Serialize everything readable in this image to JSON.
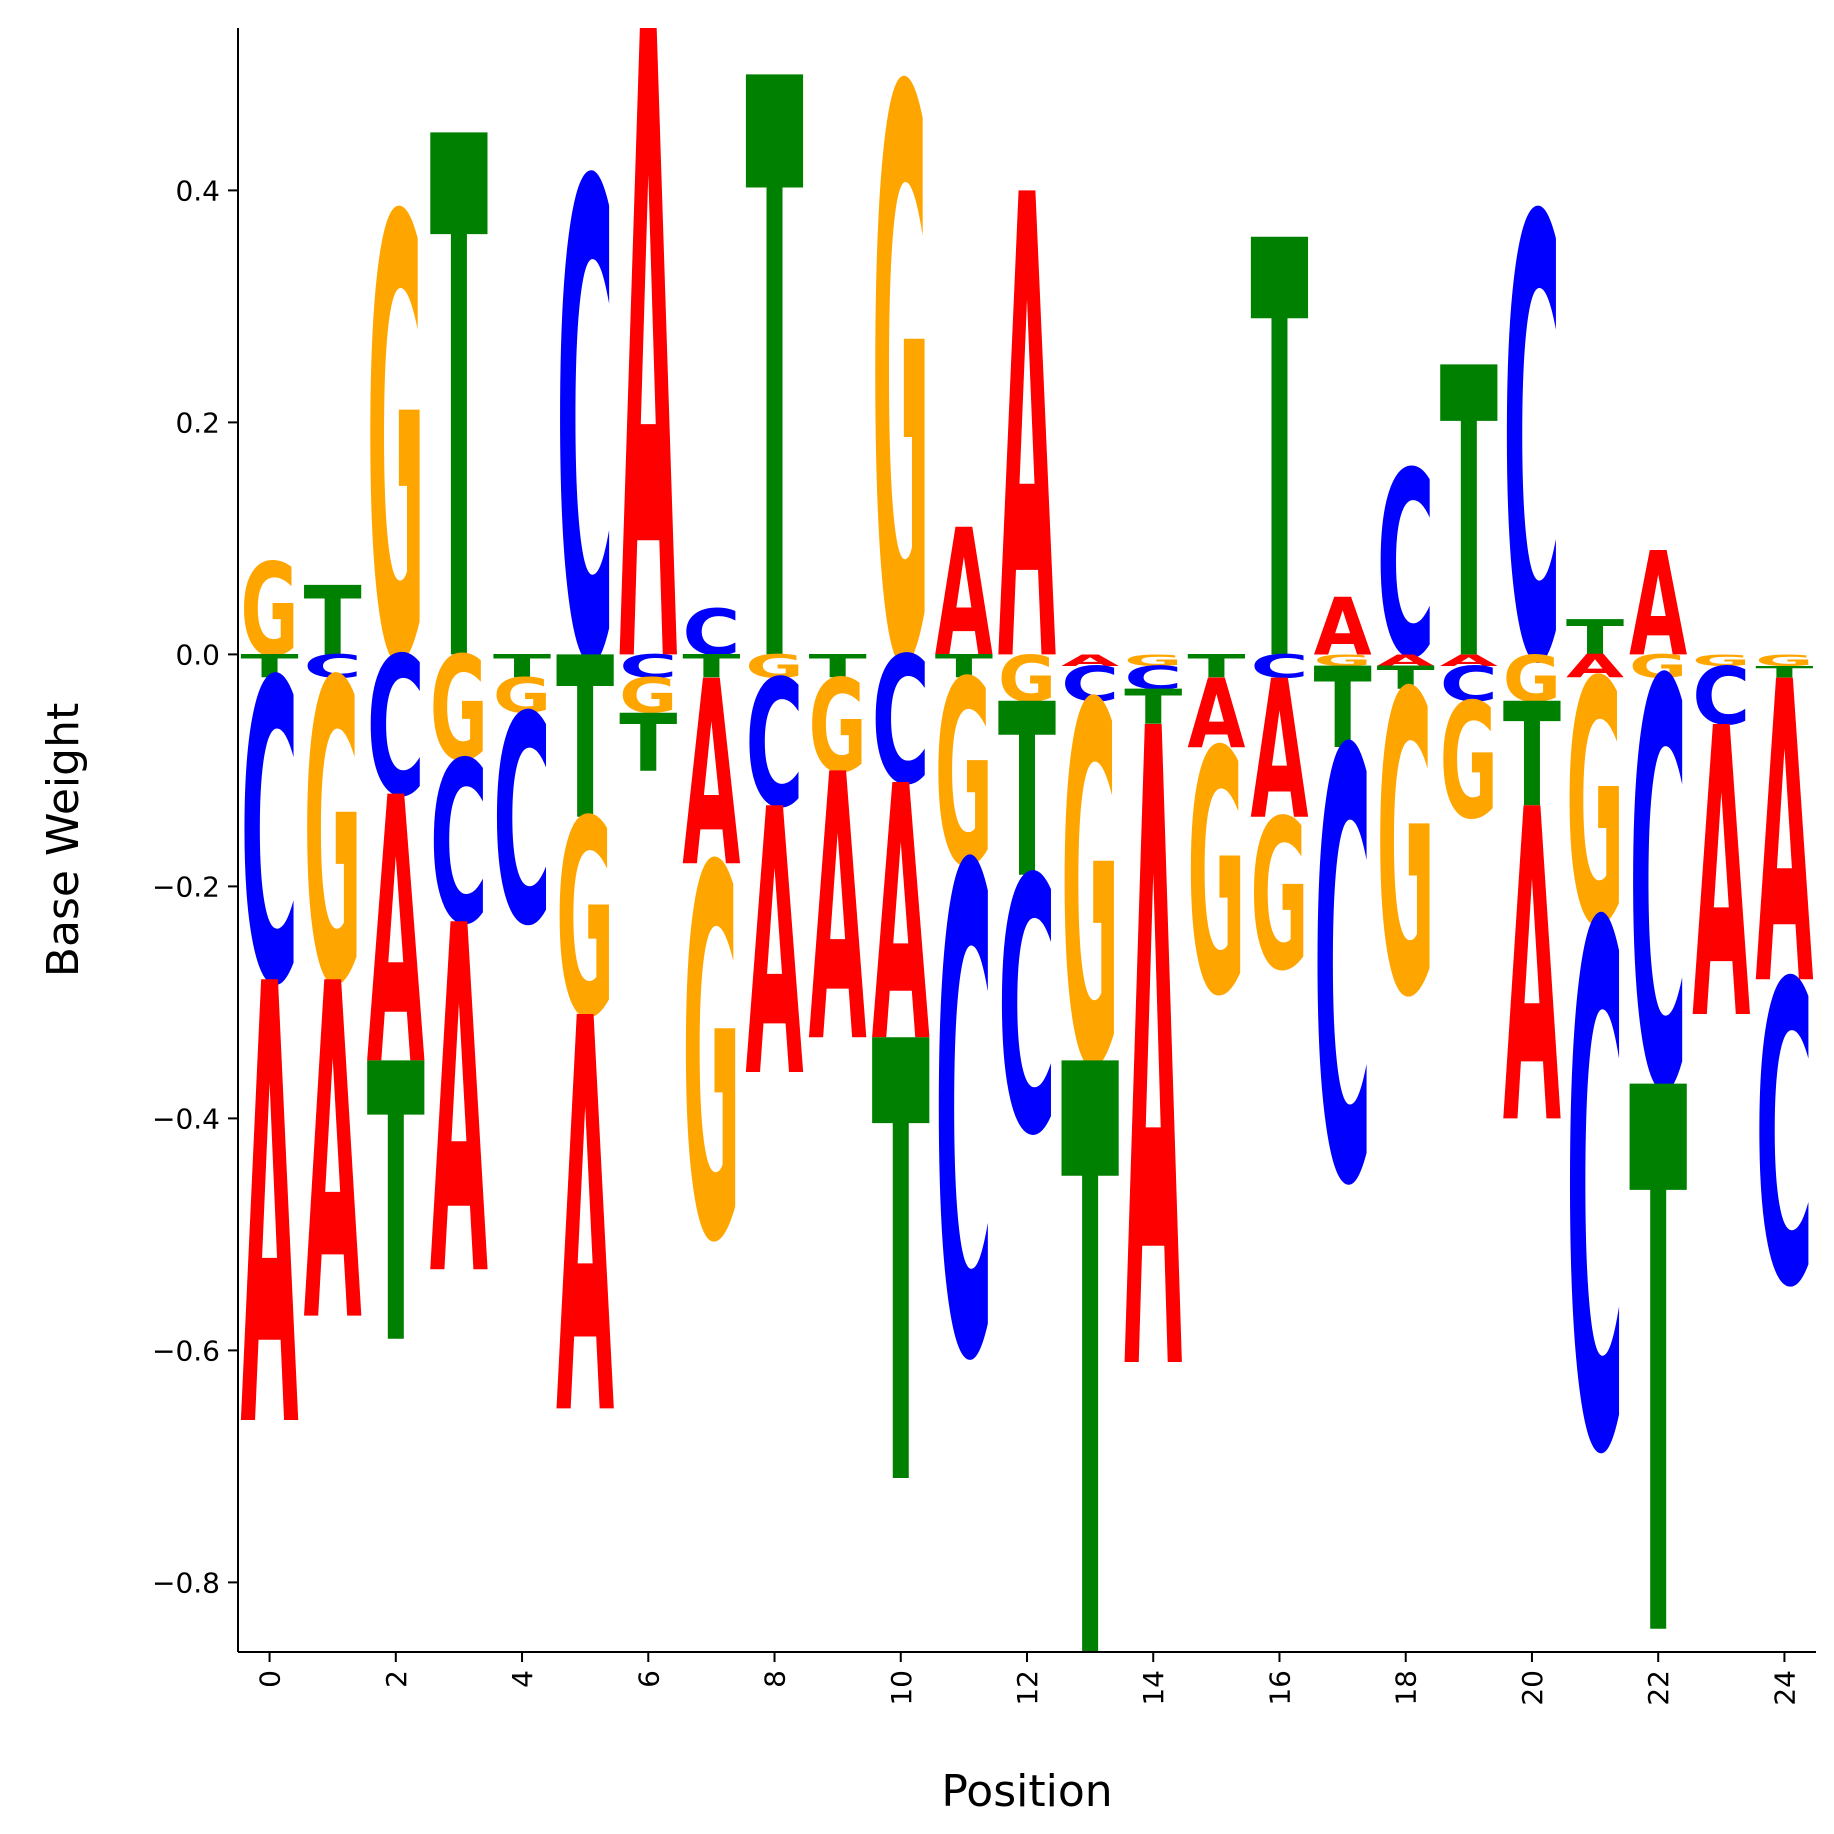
{
  "chart_data": {
    "type": "sequence-logo",
    "xlabel": "Position",
    "ylabel": "Base Weight",
    "xlim": [
      -0.5,
      24.5
    ],
    "ylim": [
      -0.86,
      0.54
    ],
    "x_ticks": [
      0,
      2,
      4,
      6,
      8,
      10,
      12,
      14,
      16,
      18,
      20,
      22,
      24
    ],
    "y_ticks": [
      -0.8,
      -0.6,
      -0.4,
      -0.2,
      0.0,
      0.2,
      0.4
    ],
    "y_tick_labels": [
      "−0.8",
      "−0.6",
      "−0.4",
      "−0.2",
      "0.0",
      "0.2",
      "0.4"
    ],
    "base_colors": {
      "A": "#ff0000",
      "C": "#0000ff",
      "G": "#ffa500",
      "T": "#008000"
    },
    "positions": [
      {
        "pos": 0,
        "A": -0.38,
        "C": -0.26,
        "G": 0.08,
        "T": -0.02
      },
      {
        "pos": 1,
        "A": -0.29,
        "C": -0.02,
        "G": -0.26,
        "T": 0.06
      },
      {
        "pos": 2,
        "A": -0.23,
        "C": -0.12,
        "G": 0.38,
        "T": -0.24
      },
      {
        "pos": 3,
        "A": -0.3,
        "C": -0.14,
        "G": -0.09,
        "T": 0.45
      },
      {
        "pos": 4,
        "A": 0.0,
        "C": -0.18,
        "G": -0.03,
        "T": -0.02
      },
      {
        "pos": 5,
        "A": -0.34,
        "C": 0.41,
        "G": -0.17,
        "T": -0.14
      },
      {
        "pos": 6,
        "A": 0.54,
        "C": -0.02,
        "G": -0.03,
        "T": -0.05
      },
      {
        "pos": 7,
        "A": -0.16,
        "C": 0.04,
        "G": -0.32,
        "T": -0.02
      },
      {
        "pos": 8,
        "A": -0.23,
        "C": -0.11,
        "G": -0.02,
        "T": 0.5
      },
      {
        "pos": 9,
        "A": -0.23,
        "C": 0.0,
        "G": -0.08,
        "T": -0.02
      },
      {
        "pos": 10,
        "A": -0.22,
        "C": -0.11,
        "G": 0.49,
        "T": -0.38
      },
      {
        "pos": 11,
        "A": 0.11,
        "C": -0.42,
        "G": -0.16,
        "T": -0.02
      },
      {
        "pos": 12,
        "A": 0.4,
        "C": -0.22,
        "G": -0.04,
        "T": -0.15
      },
      {
        "pos": 13,
        "A": -0.01,
        "C": -0.03,
        "G": -0.31,
        "T": -0.51
      },
      {
        "pos": 14,
        "A": -0.55,
        "C": -0.02,
        "G": -0.01,
        "T": -0.03
      },
      {
        "pos": 15,
        "A": -0.06,
        "C": 0.0,
        "G": -0.21,
        "T": -0.02
      },
      {
        "pos": 16,
        "A": -0.12,
        "C": -0.02,
        "G": -0.13,
        "T": 0.36
      },
      {
        "pos": 17,
        "A": 0.05,
        "C": -0.37,
        "G": -0.01,
        "T": -0.07
      },
      {
        "pos": 18,
        "A": -0.01,
        "C": 0.16,
        "G": -0.26,
        "T": -0.02
      },
      {
        "pos": 19,
        "A": -0.01,
        "C": -0.03,
        "G": -0.1,
        "T": 0.25
      },
      {
        "pos": 20,
        "A": -0.27,
        "C": 0.38,
        "G": -0.04,
        "T": -0.09
      },
      {
        "pos": 21,
        "A": -0.02,
        "C": -0.45,
        "G": -0.21,
        "T": 0.03
      },
      {
        "pos": 22,
        "A": 0.09,
        "C": -0.35,
        "G": -0.02,
        "T": -0.47
      },
      {
        "pos": 23,
        "A": -0.25,
        "C": -0.05,
        "G": -0.01,
        "T": 0.0
      },
      {
        "pos": 24,
        "A": -0.26,
        "C": -0.26,
        "G": -0.01,
        "T": -0.01
      }
    ]
  }
}
